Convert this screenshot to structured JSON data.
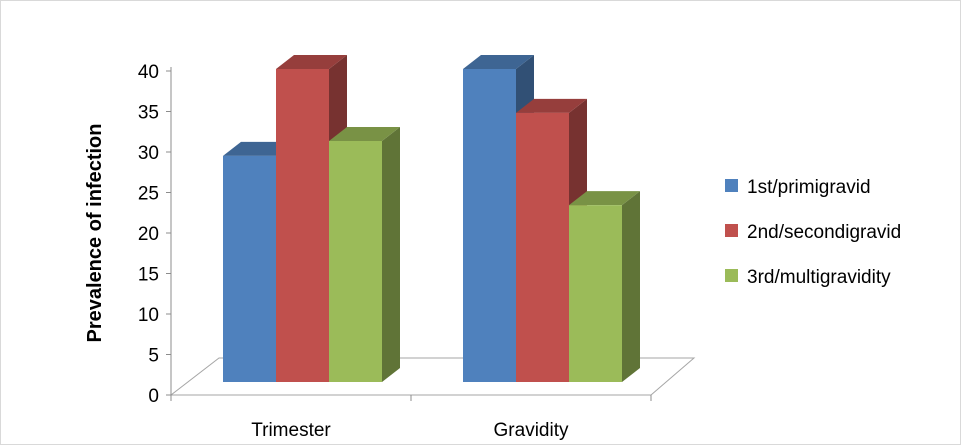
{
  "chart_data": {
    "type": "bar",
    "style": "3d-clustered-column",
    "categories": [
      "Trimester",
      "Gravidity"
    ],
    "series": [
      {
        "name": "1st/primigravid",
        "values": [
          28.9,
          40
        ],
        "color": "#4f81bd"
      },
      {
        "name": "2nd/secondigravid",
        "values": [
          40,
          34.4
        ],
        "color": "#c0504d"
      },
      {
        "name": "3rd/multigravidity",
        "values": [
          30.8,
          22.6
        ],
        "color": "#9bbb59"
      }
    ],
    "ylabel": "Prevalence of infection",
    "xlabel": "",
    "ylim": [
      0,
      40
    ],
    "yticks": [
      "0",
      "5",
      "10",
      "15",
      "20",
      "25",
      "30",
      "35",
      "40"
    ],
    "grid": false,
    "legend_position": "right"
  }
}
